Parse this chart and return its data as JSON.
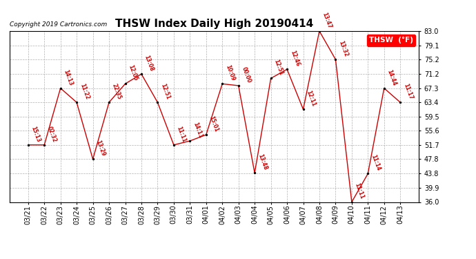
{
  "title": "THSW Index Daily High 20190414",
  "copyright": "Copyright 2019 Cartronics.com",
  "legend_label": "THSW  (°F)",
  "dates": [
    "03/21",
    "03/22",
    "03/23",
    "03/24",
    "03/25",
    "03/26",
    "03/27",
    "03/28",
    "03/29",
    "03/30",
    "03/31",
    "04/01",
    "04/02",
    "04/03",
    "04/04",
    "04/05",
    "04/06",
    "04/07",
    "04/08",
    "04/09",
    "04/10",
    "04/11",
    "04/12",
    "04/13"
  ],
  "values": [
    51.7,
    51.7,
    67.3,
    63.4,
    47.8,
    63.4,
    68.5,
    71.2,
    63.4,
    51.7,
    52.8,
    54.5,
    68.5,
    68.0,
    44.0,
    70.0,
    72.5,
    61.5,
    83.0,
    75.2,
    36.0,
    43.8,
    67.3,
    63.4
  ],
  "time_labels": [
    "15:13",
    "02:32",
    "14:13",
    "11:22",
    "13:29",
    "22:35",
    "12:05",
    "13:08",
    "12:51",
    "11:11",
    "14:11",
    "15:01",
    "10:09",
    "00:00",
    "13:48",
    "12:51",
    "12:46",
    "12:11",
    "13:47",
    "13:32",
    "11:11",
    "11:14",
    "14:44",
    "11:17"
  ],
  "ylim": [
    36.0,
    83.0
  ],
  "yticks": [
    36.0,
    39.9,
    43.8,
    47.8,
    51.7,
    55.6,
    59.5,
    63.4,
    67.3,
    71.2,
    75.2,
    79.1,
    83.0
  ],
  "line_color": "#cc0000",
  "marker_color": "#000000",
  "bg_color": "#ffffff",
  "grid_color": "#b0b0b0",
  "title_fontsize": 11,
  "tick_fontsize": 7,
  "annot_fontsize": 5.5
}
